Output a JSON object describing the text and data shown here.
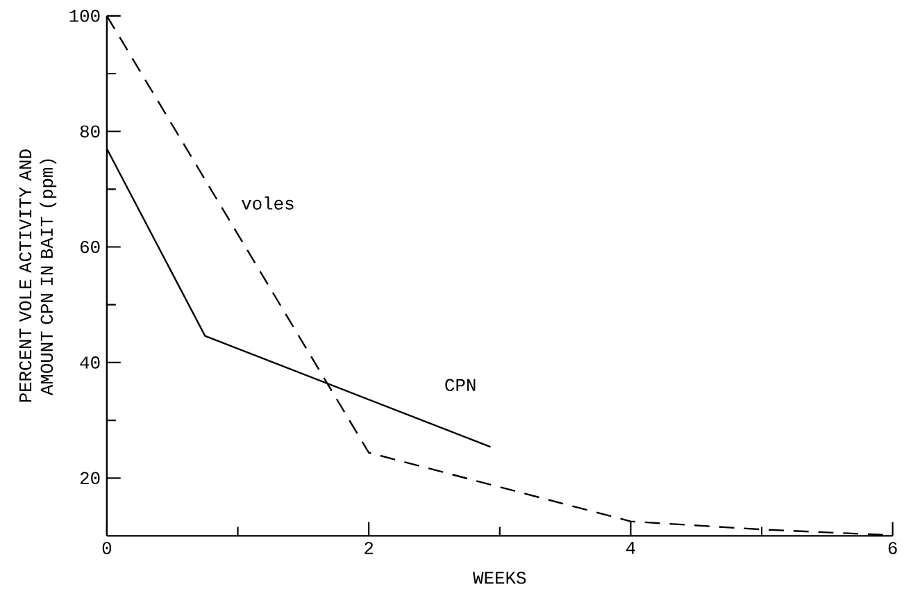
{
  "chart_data": {
    "type": "line",
    "xlabel": "WEEKS",
    "ylabel": "PERCENT VOLE ACTIVITY AND AMOUNT CPN IN BAIT (ppm)",
    "xlim": [
      0,
      6
    ],
    "ylim": [
      10,
      100
    ],
    "xticks": [
      0,
      {
        "value": 1,
        "label": null
      },
      2,
      {
        "value": 3,
        "label": null
      },
      4,
      {
        "value": 5,
        "label": null
      },
      6
    ],
    "yticks": [
      20,
      {
        "value": 30,
        "label": null
      },
      40,
      {
        "value": 50,
        "label": null
      },
      60,
      {
        "value": 70,
        "label": null
      },
      80,
      {
        "value": 90,
        "label": null
      },
      100
    ],
    "grid": false,
    "legend": false,
    "marker": "none",
    "series": [
      {
        "name": "voles",
        "color": "#000000",
        "line_style": "dashed",
        "x": [
          0,
          2.0,
          4,
          5,
          6
        ],
        "values": [
          100,
          24.4,
          12.5,
          11.1,
          10.1
        ]
      },
      {
        "name": "CPN",
        "color": "#000000",
        "line_style": "solid",
        "x": [
          0,
          0.75,
          2.93
        ],
        "values": [
          77,
          44.6,
          25.4
        ]
      }
    ]
  }
}
